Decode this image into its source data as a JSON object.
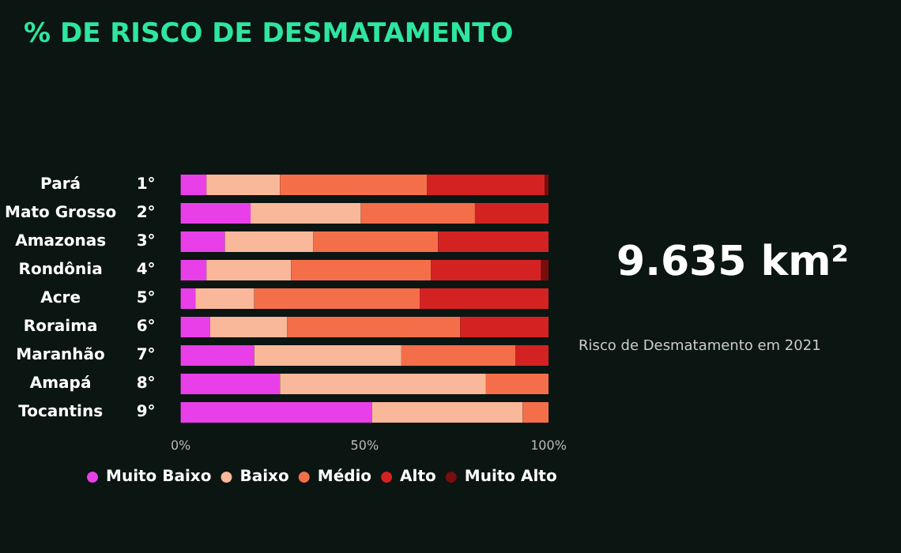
{
  "chart_data": {
    "type": "bar",
    "orientation": "horizontal",
    "stacked": true,
    "title": "% DE RISCO DE DESMATAMENTO",
    "categories": [
      "Pará 1°",
      "Mato Grosso 2°",
      "Amazonas 3°",
      "Rondônia 4°",
      "Acre 5°",
      "Roraima 6°",
      "Maranhão 7°",
      "Amapá 8°",
      "Tocantins 9°"
    ],
    "series": [
      {
        "name": "Muito Baixo",
        "color": "#e83fe8",
        "values": [
          7,
          19,
          12,
          7,
          4,
          8,
          20,
          27,
          52
        ]
      },
      {
        "name": "Baixo",
        "color": "#f9b89a",
        "values": [
          20,
          30,
          24,
          23,
          16,
          21,
          40,
          56,
          41
        ]
      },
      {
        "name": "Médio",
        "color": "#f56e4a",
        "values": [
          40,
          31,
          34,
          38,
          45,
          47,
          31,
          17,
          7
        ]
      },
      {
        "name": "Alto",
        "color": "#d42222",
        "values": [
          32,
          20,
          30,
          30,
          35,
          24,
          9,
          0,
          0
        ]
      },
      {
        "name": "Muito Alto",
        "color": "#7a0d0d",
        "values": [
          1,
          0,
          0,
          2,
          0,
          0,
          0,
          0,
          0
        ]
      }
    ],
    "xlim": [
      0,
      100
    ],
    "xticks": [
      {
        "value": 0,
        "label": "0%"
      },
      {
        "value": 50,
        "label": "50%"
      },
      {
        "value": 100,
        "label": "100%"
      }
    ],
    "grid": false,
    "legend": "bottom",
    "annotations": [
      "9.635 km²",
      "Risco de Desmatamento em 2021"
    ]
  }
}
